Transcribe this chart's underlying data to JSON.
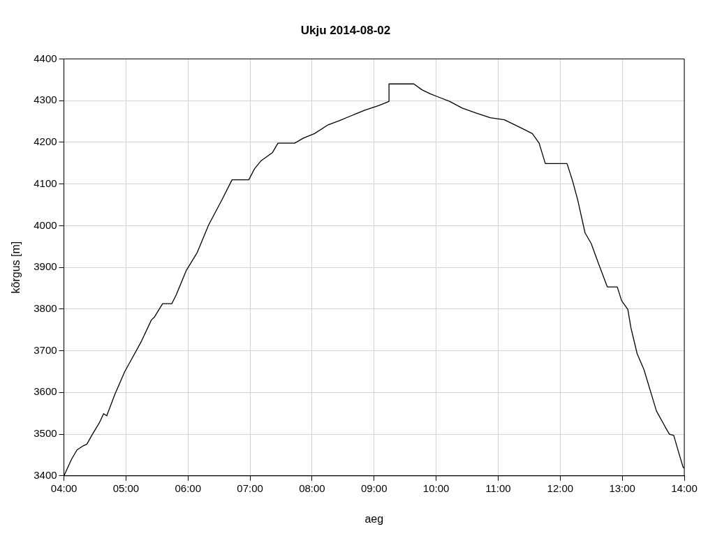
{
  "chart_data": {
    "type": "line",
    "title": "Ukju 2014-08-02",
    "xlabel": "aeg",
    "ylabel": "kõrgus [m]",
    "x": [
      4.0,
      4.12,
      4.21,
      4.31,
      4.37,
      4.46,
      4.57,
      4.64,
      4.69,
      4.82,
      4.98,
      5.11,
      5.25,
      5.41,
      5.46,
      5.59,
      5.74,
      5.81,
      5.97,
      6.15,
      6.33,
      6.55,
      6.71,
      6.98,
      7.07,
      7.18,
      7.36,
      7.45,
      7.55,
      7.72,
      7.86,
      8.04,
      8.26,
      8.44,
      8.62,
      8.85,
      9.07,
      9.24,
      9.24,
      9.64,
      9.77,
      9.91,
      10.03,
      10.22,
      10.42,
      10.65,
      10.87,
      11.1,
      11.32,
      11.55,
      11.66,
      11.76,
      12.11,
      12.2,
      12.28,
      12.4,
      12.5,
      12.62,
      12.76,
      12.92,
      12.99,
      13.09,
      13.14,
      13.24,
      13.35,
      13.55,
      13.69,
      13.76,
      13.83,
      13.91,
      13.98,
      14.0
    ],
    "series": [
      {
        "color": "#000000",
        "values": [
          3400,
          3439,
          3462,
          3472,
          3476,
          3500,
          3527,
          3549,
          3544,
          3595,
          3650,
          3685,
          3723,
          3774,
          3781,
          3813,
          3813,
          3834,
          3892,
          3936,
          4001,
          4063,
          4110,
          4110,
          4136,
          4156,
          4175,
          4198,
          4198,
          4198,
          4210,
          4221,
          4242,
          4252,
          4263,
          4277,
          4288,
          4298,
          4340,
          4340,
          4326,
          4316,
          4309,
          4298,
          4282,
          4270,
          4259,
          4254,
          4238,
          4221,
          4198,
          4149,
          4149,
          4107,
          4063,
          3983,
          3957,
          3908,
          3853,
          3853,
          3820,
          3799,
          3755,
          3693,
          3655,
          3556,
          3518,
          3500,
          3497,
          3456,
          3421,
          3418
        ]
      }
    ],
    "xlim": [
      4,
      14
    ],
    "xticks": [
      {
        "value": 4,
        "label": "04:00"
      },
      {
        "value": 5,
        "label": "05:00"
      },
      {
        "value": 6,
        "label": "06:00"
      },
      {
        "value": 7,
        "label": "07:00"
      },
      {
        "value": 8,
        "label": "08:00"
      },
      {
        "value": 9,
        "label": "09:00"
      },
      {
        "value": 10,
        "label": "10:00"
      },
      {
        "value": 11,
        "label": "11:00"
      },
      {
        "value": 12,
        "label": "12:00"
      },
      {
        "value": 13,
        "label": "13:00"
      },
      {
        "value": 14,
        "label": "14:00"
      }
    ],
    "ylim": [
      3400,
      4400
    ],
    "yticks": [
      3400,
      3500,
      3600,
      3700,
      3800,
      3900,
      4000,
      4100,
      4200,
      4300,
      4400
    ],
    "grid": true,
    "legend": false,
    "marker": "none",
    "line_style": "solid"
  }
}
